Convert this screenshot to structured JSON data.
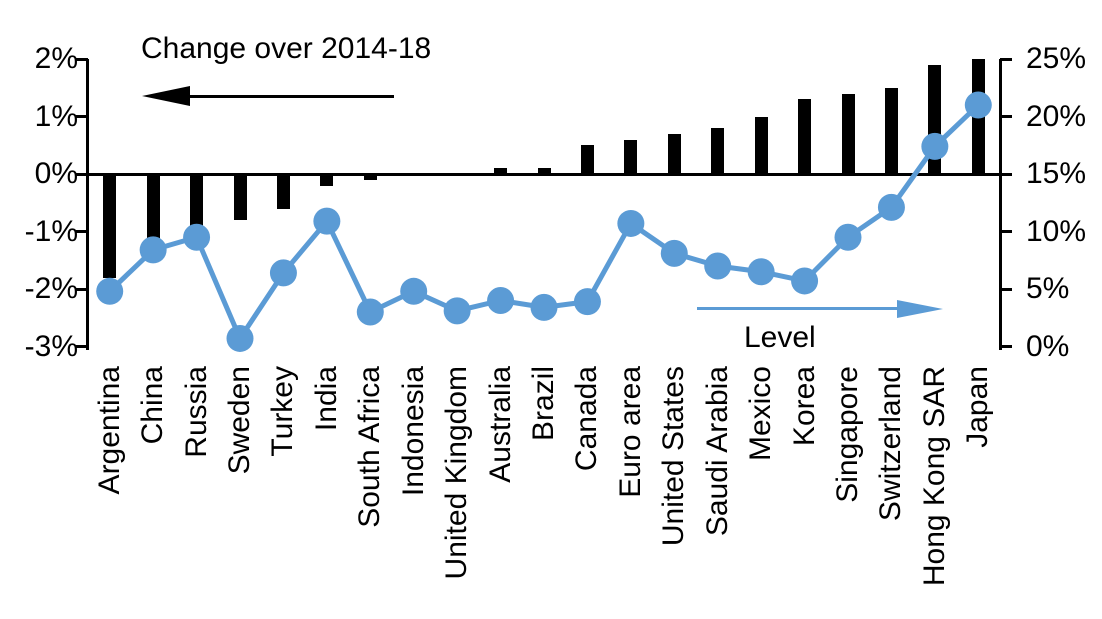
{
  "chart_data": {
    "type": "bar+line",
    "title": "",
    "categories": [
      "Argentina",
      "China",
      "Russia",
      "Sweden",
      "Turkey",
      "India",
      "South Africa",
      "Indonesia",
      "United Kingdom",
      "Australia",
      "Brazil",
      "Canada",
      "Euro area",
      "United States",
      "Saudi Arabia",
      "Mexico",
      "Korea",
      "Singapore",
      "Switzerland",
      "Hong Kong SAR",
      "Japan"
    ],
    "series": [
      {
        "name": "Change over 2014-18",
        "type": "bar",
        "axis": "left",
        "color": "#000000",
        "values": [
          -1.8,
          -1.5,
          -1.3,
          -0.8,
          -0.6,
          -0.2,
          -0.1,
          0,
          0,
          0.1,
          0.1,
          0.5,
          0.6,
          0.7,
          0.8,
          1.0,
          1.3,
          1.4,
          1.5,
          1.9,
          2.0
        ]
      },
      {
        "name": "Level",
        "type": "line",
        "axis": "right",
        "color": "#5B9BD5",
        "values": [
          4.8,
          8.4,
          9.5,
          0.7,
          6.4,
          10.9,
          3.0,
          4.8,
          3.1,
          4.0,
          3.4,
          3.9,
          10.7,
          8.1,
          7.0,
          6.5,
          5.7,
          9.5,
          12.1,
          17.4,
          21.0
        ]
      }
    ],
    "left_axis": {
      "min": -3,
      "max": 2,
      "tick_labels": [
        "2%",
        "1%",
        "0%",
        "-1%",
        "-2%",
        "-3%"
      ],
      "tick_values": [
        2,
        1,
        0,
        -1,
        -2,
        -3
      ]
    },
    "right_axis": {
      "min": 0,
      "max": 25,
      "tick_labels": [
        "25%",
        "20%",
        "15%",
        "10%",
        "5%",
        "0%"
      ],
      "tick_values": [
        25,
        20,
        15,
        10,
        5,
        0
      ]
    },
    "annotations": {
      "change": {
        "text": "Change over 2014-18",
        "arrow_direction": "left",
        "arrow_color": "#000000"
      },
      "level": {
        "text": "Level",
        "arrow_direction": "right",
        "arrow_color": "#5B9BD5"
      }
    },
    "grid": false,
    "legend_position": "none"
  }
}
